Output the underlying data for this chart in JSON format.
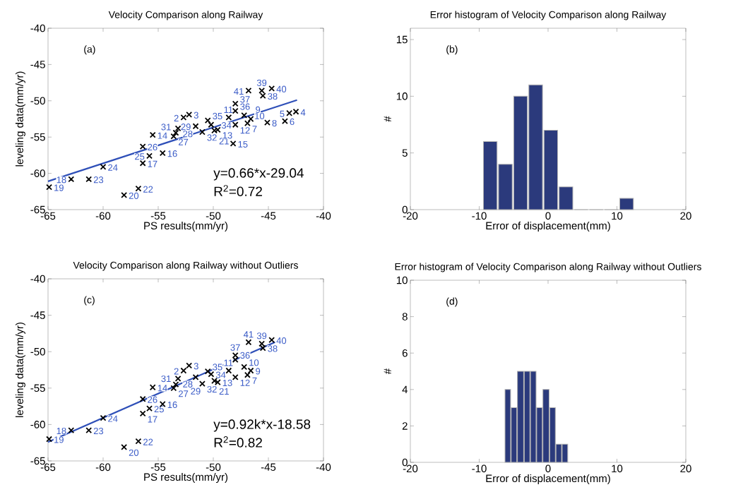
{
  "chart_data": [
    {
      "type": "scatter",
      "title": "Velocity Comparison along Railway",
      "xlabel": "PS results(mm/yr)",
      "ylabel": "leveling data(mm/yr)",
      "xlim": [
        -65,
        -40
      ],
      "ylim": [
        -65,
        -40
      ],
      "xticks": [
        -65,
        -60,
        -55,
        -50,
        -45,
        -40
      ],
      "yticks": [
        -65,
        -60,
        -55,
        -50,
        -45,
        -40
      ],
      "marker": "cross",
      "series": [
        {
          "type": "scatter",
          "color": "#000000",
          "x": [
            -64.9,
            -62.9,
            -61.3,
            -60.0,
            -58.1,
            -56.8,
            -56.4,
            -56.4,
            -55.8,
            -55.5,
            -54.6,
            -53.6,
            -53.4,
            -53.2,
            -52.7,
            -52.2,
            -51.6,
            -51.0,
            -50.5,
            -50.2,
            -49.9,
            -49.6,
            -48.6,
            -48.0,
            -48.0,
            -48.0,
            -48.2,
            -47.2,
            -46.9,
            -46.6,
            -46.8,
            -45.6,
            -45.5,
            -44.7,
            -45.1,
            -43.5,
            -43.1,
            -42.5
          ],
          "values": [
            -61.9,
            -60.8,
            -60.8,
            -59.1,
            -63.0,
            -62.1,
            -58.6,
            -56.3,
            -57.6,
            -54.7,
            -57.2,
            -54.9,
            -54.4,
            -53.8,
            -52.3,
            -51.9,
            -53.5,
            -54.3,
            -52.7,
            -53.3,
            -54.1,
            -54.0,
            -52.3,
            -53.3,
            -51.4,
            -50.4,
            -55.9,
            -52.0,
            -53.1,
            -52.5,
            -48.6,
            -48.6,
            -49.3,
            -48.3,
            -53.0,
            -52.8,
            -51.7,
            -51.5
          ]
        },
        {
          "type": "line",
          "color": "#2e4fb8",
          "marker": "none",
          "x": [
            -65,
            -42.4
          ],
          "values": [
            -61.1,
            -49.9
          ]
        }
      ],
      "annotations": [
        "(a)",
        "y=0.66*x-29.04",
        "R$^{2}$=0.72",
        {
          "text": "19",
          "x": -64.9,
          "y": -61.9
        },
        {
          "text": "18",
          "x": -62.9,
          "y": -60.8
        },
        {
          "text": "23",
          "x": -61.3,
          "y": -60.8
        },
        {
          "text": "24",
          "x": -60.0,
          "y": -59.1
        },
        {
          "text": "20",
          "x": -58.1,
          "y": -63.0
        },
        {
          "text": "22",
          "x": -56.8,
          "y": -62.1
        },
        {
          "text": "17",
          "x": -56.4,
          "y": -58.6
        },
        {
          "text": "26",
          "x": -56.4,
          "y": -56.3
        },
        {
          "text": "25",
          "x": -55.8,
          "y": -57.6
        },
        {
          "text": "14",
          "x": -55.5,
          "y": -54.7
        },
        {
          "text": "16",
          "x": -54.6,
          "y": -57.2
        },
        {
          "text": "27",
          "x": -53.6,
          "y": -54.9
        },
        {
          "text": "31",
          "x": -53.4,
          "y": -54.4
        },
        {
          "text": "28",
          "x": -53.2,
          "y": -53.8
        },
        {
          "text": "2",
          "x": -52.7,
          "y": -52.3
        },
        {
          "text": "3",
          "x": -52.2,
          "y": -51.9
        },
        {
          "text": "29",
          "x": -51.6,
          "y": -53.5
        },
        {
          "text": "32",
          "x": -51.0,
          "y": -54.3
        },
        {
          "text": "35",
          "x": -50.5,
          "y": -52.7
        },
        {
          "text": "34",
          "x": -50.2,
          "y": -53.3
        },
        {
          "text": "21",
          "x": -49.9,
          "y": -54.1
        },
        {
          "text": "13",
          "x": -49.6,
          "y": -54.0
        },
        {
          "text": "11",
          "x": -48.6,
          "y": -52.3
        },
        {
          "text": "12",
          "x": -48.0,
          "y": -53.3
        },
        {
          "text": "36",
          "x": -48.0,
          "y": -51.4
        },
        {
          "text": "37",
          "x": -48.0,
          "y": -50.4
        },
        {
          "text": "15",
          "x": -48.2,
          "y": -55.9
        },
        {
          "text": "10",
          "x": -47.2,
          "y": -52.0
        },
        {
          "text": "7",
          "x": -46.9,
          "y": -53.1
        },
        {
          "text": "9",
          "x": -46.6,
          "y": -52.5
        },
        {
          "text": "41",
          "x": -46.8,
          "y": -48.6
        },
        {
          "text": "39",
          "x": -45.6,
          "y": -48.6
        },
        {
          "text": "38",
          "x": -45.5,
          "y": -49.3
        },
        {
          "text": "40",
          "x": -44.7,
          "y": -48.3
        },
        {
          "text": "8",
          "x": -45.1,
          "y": -53.0
        },
        {
          "text": "6",
          "x": -43.5,
          "y": -52.8
        },
        {
          "text": "5",
          "x": -43.1,
          "y": -51.7
        },
        {
          "text": "4",
          "x": -42.5,
          "y": -51.5
        }
      ]
    },
    {
      "type": "histogram",
      "title": "Error histogram of Velocity Comparison along Railway",
      "xlabel": "Error of displacement(mm)",
      "ylabel": "#",
      "color": "#2b3a7c",
      "xlim": [
        -20,
        20
      ],
      "ylim": [
        0,
        16
      ],
      "xticks": [
        -20,
        -10,
        0,
        10,
        20
      ],
      "yticks": [
        0,
        5,
        10,
        15
      ],
      "bins": [
        -9.5,
        -7.3,
        -5.1,
        -2.9,
        -0.7,
        1.5,
        3.7,
        5.9,
        8.1,
        10.3,
        12.5
      ],
      "values": [
        6,
        4,
        10,
        11,
        7,
        2,
        0,
        0,
        0,
        1
      ],
      "annotations": [
        "(b)"
      ]
    },
    {
      "type": "scatter",
      "title": "Velocity Comparison along Railway without Outliers",
      "xlabel": "PS results(mm/yr)",
      "ylabel": "leveling data(mm/yr)",
      "xlim": [
        -65,
        -40
      ],
      "ylim": [
        -65,
        -40
      ],
      "xticks": [
        -65,
        -60,
        -55,
        -50,
        -45,
        -40
      ],
      "yticks": [
        -65,
        -60,
        -55,
        -50,
        -45,
        -40
      ],
      "marker": "cross",
      "series": [
        {
          "type": "scatter",
          "color": "#000000",
          "x": [
            -64.9,
            -62.9,
            -61.3,
            -60.0,
            -58.1,
            -56.8,
            -56.4,
            -56.4,
            -55.8,
            -55.5,
            -54.6,
            -53.6,
            -53.4,
            -53.2,
            -52.7,
            -52.2,
            -51.6,
            -51.0,
            -50.5,
            -50.2,
            -49.9,
            -49.6,
            -48.6,
            -48.0,
            -48.0,
            -48.0,
            -47.2,
            -46.9,
            -46.6,
            -46.8,
            -45.6,
            -45.5,
            -44.7
          ],
          "values": [
            -62.0,
            -60.8,
            -60.8,
            -59.1,
            -63.1,
            -62.3,
            -58.5,
            -56.5,
            -57.8,
            -54.9,
            -57.2,
            -55.0,
            -54.5,
            -53.7,
            -52.6,
            -51.9,
            -53.5,
            -54.4,
            -52.7,
            -53.1,
            -54.0,
            -54.2,
            -52.6,
            -53.5,
            -51.1,
            -50.5,
            -52.1,
            -53.2,
            -52.6,
            -48.7,
            -48.9,
            -49.5,
            -48.4
          ]
        },
        {
          "type": "line",
          "color": "#2e4fb8",
          "marker": "none",
          "x": [
            -65,
            -44.4
          ],
          "values": [
            -62.4,
            -48.7
          ]
        }
      ],
      "annotations": [
        "(c)",
        "y=0.92k*x-18.58",
        "R$^{2}$=0.82",
        {
          "text": "19",
          "x": -64.9,
          "y": -62.0
        },
        {
          "text": "18",
          "x": -62.9,
          "y": -60.8
        },
        {
          "text": "23",
          "x": -61.3,
          "y": -60.8
        },
        {
          "text": "24",
          "x": -60.0,
          "y": -59.1
        },
        {
          "text": "20",
          "x": -58.1,
          "y": -63.1
        },
        {
          "text": "22",
          "x": -56.8,
          "y": -62.3
        },
        {
          "text": "17",
          "x": -56.4,
          "y": -58.5
        },
        {
          "text": "26",
          "x": -56.4,
          "y": -56.5
        },
        {
          "text": "25",
          "x": -55.8,
          "y": -57.8
        },
        {
          "text": "14",
          "x": -55.5,
          "y": -54.9
        },
        {
          "text": "16",
          "x": -54.6,
          "y": -57.2
        },
        {
          "text": "27",
          "x": -53.6,
          "y": -55.0
        },
        {
          "text": "31",
          "x": -53.4,
          "y": -54.5
        },
        {
          "text": "28",
          "x": -53.2,
          "y": -53.7
        },
        {
          "text": "2",
          "x": -52.7,
          "y": -52.6
        },
        {
          "text": "3",
          "x": -52.2,
          "y": -51.9
        },
        {
          "text": "29",
          "x": -51.6,
          "y": -53.5
        },
        {
          "text": "32",
          "x": -51.0,
          "y": -54.4
        },
        {
          "text": "35",
          "x": -50.5,
          "y": -52.7
        },
        {
          "text": "34",
          "x": -50.2,
          "y": -53.1
        },
        {
          "text": "21",
          "x": -49.9,
          "y": -54.0
        },
        {
          "text": "13",
          "x": -49.6,
          "y": -54.2
        },
        {
          "text": "11",
          "x": -48.6,
          "y": -52.6
        },
        {
          "text": "12",
          "x": -48.0,
          "y": -53.5
        },
        {
          "text": "36",
          "x": -48.0,
          "y": -51.1
        },
        {
          "text": "37",
          "x": -48.0,
          "y": -50.5
        },
        {
          "text": "10",
          "x": -47.2,
          "y": -52.1
        },
        {
          "text": "7",
          "x": -46.9,
          "y": -53.2
        },
        {
          "text": "9",
          "x": -46.6,
          "y": -52.6
        },
        {
          "text": "41",
          "x": -46.8,
          "y": -48.7
        },
        {
          "text": "39",
          "x": -45.6,
          "y": -48.9
        },
        {
          "text": "38",
          "x": -45.5,
          "y": -49.5
        },
        {
          "text": "40",
          "x": -44.7,
          "y": -48.4
        }
      ]
    },
    {
      "type": "histogram",
      "title": "Error histogram of Velocity Comparison along Railway without Outliers",
      "xlabel": "Error of displacement(mm)",
      "ylabel": "#",
      "color": "#2b3a7c",
      "xlim": [
        -20,
        20
      ],
      "ylim": [
        0,
        10
      ],
      "xticks": [
        -20,
        -10,
        0,
        10,
        20
      ],
      "yticks": [
        0,
        2,
        4,
        6,
        8,
        10
      ],
      "bins": [
        -6.3,
        -5.4,
        -4.5,
        -3.5,
        -2.6,
        -1.7,
        -0.8,
        0.2,
        1.1,
        2.0,
        2.9
      ],
      "values": [
        4,
        3,
        5,
        5,
        5,
        3,
        4,
        3,
        1,
        1
      ],
      "annotations": [
        "(d)"
      ]
    }
  ]
}
